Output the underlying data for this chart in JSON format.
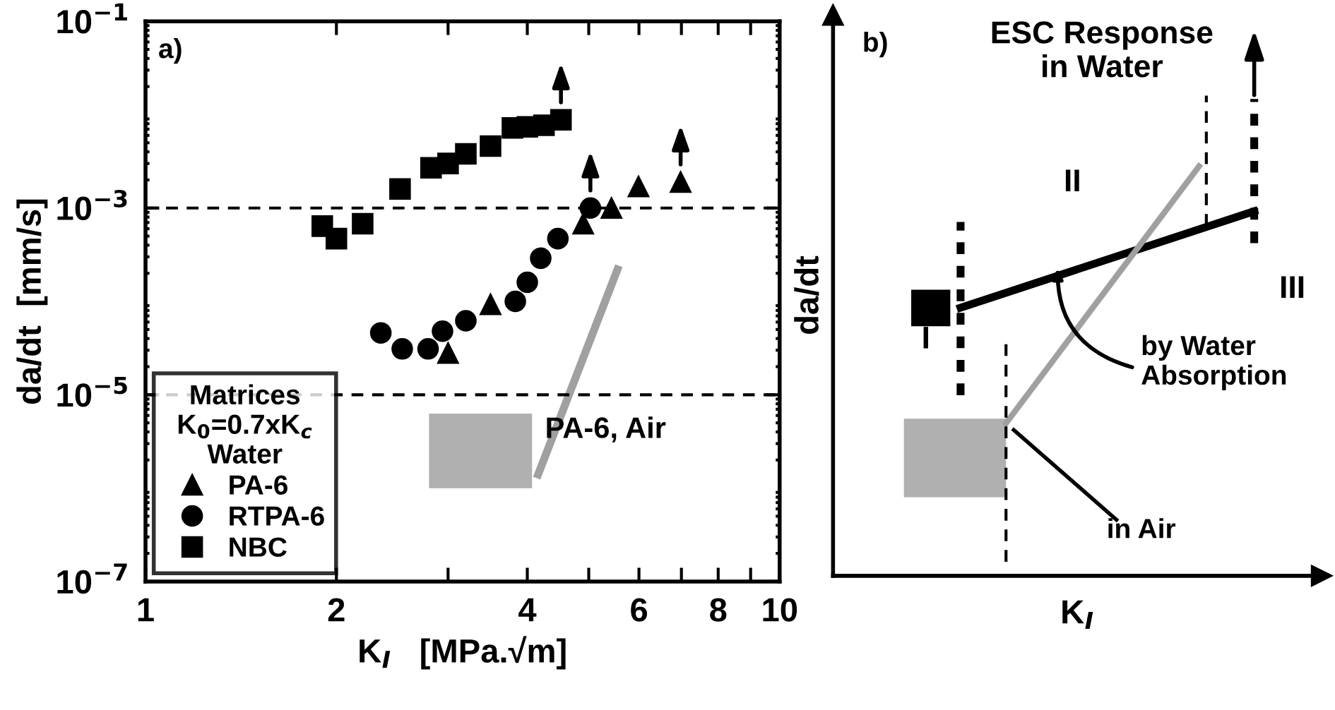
{
  "chart_data": [
    {
      "type": "scatter",
      "xlabel": "K$_{I}$   [MPa.√m]",
      "ylabel": "da/dt  [mm/s]",
      "log": "xy",
      "xlim": [
        1,
        10
      ],
      "ylim": [
        1e-07,
        0.1
      ],
      "xticks": [
        1,
        2,
        {
          "value": 3,
          "label": null
        },
        4,
        {
          "value": 5,
          "label": null
        },
        6,
        {
          "value": 7,
          "label": null
        },
        8,
        {
          "value": 9,
          "label": null
        },
        10
      ],
      "yticks": [
        {
          "value": 1e-07,
          "label": "10$^{−7}$"
        },
        {
          "value": 1e-05,
          "label": "10$^{−5}$"
        },
        {
          "value": 0.001,
          "label": "10$^{−3}$"
        },
        {
          "value": 0.1,
          "label": "10$^{−1}$"
        }
      ],
      "ref_lines": [
        {
          "axis": "y",
          "value": 0.001,
          "line_style": "dashed",
          "color": "#000000"
        },
        {
          "axis": "y",
          "value": 1e-05,
          "line_style": "dashed",
          "color": "#000000"
        }
      ],
      "legend": "bottom left",
      "legend_title": "Matrices\nK$_{0}$=0.7xK$_{c}$\nWater",
      "annotations": [
        "a)",
        "PA-6, Air"
      ],
      "series": [
        {
          "name": "PA-6",
          "color": "#000000",
          "marker": "triangle",
          "x": [
            3.0,
            3.5,
            4.9,
            5.43,
            5.99,
            6.98
          ],
          "values": [
            2.8e-05,
            9.3e-05,
            0.00068,
            0.001,
            0.0017,
            0.0019
          ]
        },
        {
          "name": "RTPA-6",
          "color": "#000000",
          "marker": "circle",
          "x": [
            2.35,
            2.54,
            2.79,
            2.94,
            3.2,
            3.83,
            4.0,
            4.2,
            4.47,
            5.03
          ],
          "values": [
            4.6e-05,
            3.1e-05,
            3.1e-05,
            4.8e-05,
            6.2e-05,
            0.0001,
            0.00016,
            0.00029,
            0.00047,
            0.001
          ]
        },
        {
          "name": "NBC",
          "color": "#000000",
          "marker": "square",
          "x": [
            1.9,
            2.0,
            2.2,
            2.52,
            2.82,
            3.0,
            3.2,
            3.5,
            3.79,
            4.0,
            4.25,
            4.52
          ],
          "values": [
            0.00064,
            0.00047,
            0.00068,
            0.0016,
            0.0027,
            0.003,
            0.0038,
            0.0046,
            0.0072,
            0.0074,
            0.0077,
            0.0088
          ]
        },
        {
          "type": "line",
          "color": "#a0a0a0",
          "x": [
            4.16,
            5.55
          ],
          "values": [
            1.4e-06,
            0.00022
          ]
        },
        {
          "type": "area",
          "color": "#b0b0b0",
          "x": [
            2.8,
            4.07,
            4.07,
            2.8
          ],
          "values": [
            1e-06,
            1e-06,
            6.3e-06,
            6.3e-06
          ]
        }
      ]
    },
    {
      "type": "other",
      "title": "ESC Response\nin Water",
      "xlabel": "K$_{I}$",
      "ylabel": "da/dt",
      "annotations": [
        "b)",
        "I",
        "II",
        "III",
        "by Water\nAbsorption",
        "in Air"
      ]
    }
  ]
}
